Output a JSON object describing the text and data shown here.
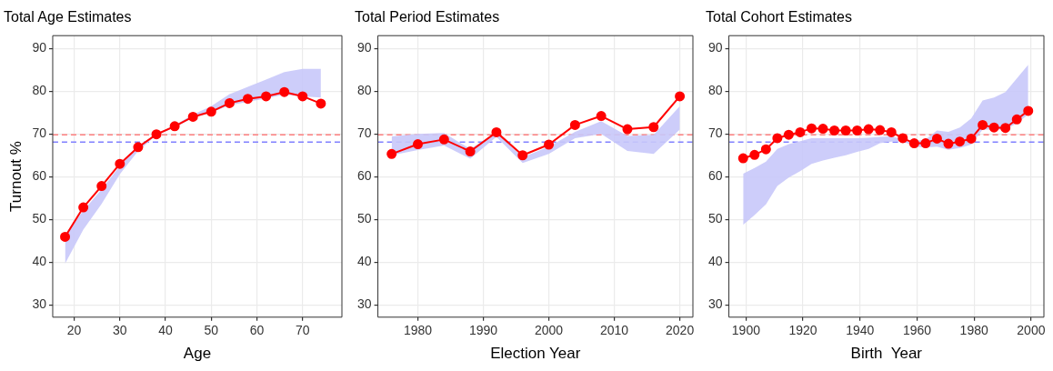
{
  "chart_data": [
    {
      "type": "line",
      "title": "Total Age Estimates",
      "xlabel": "Age",
      "ylabel": "Turnout %",
      "marker": "circle",
      "line_style": "solid",
      "grid": true,
      "x": [
        18,
        22,
        26,
        30,
        34,
        38,
        42,
        46,
        50,
        54,
        58,
        62,
        66,
        70,
        74
      ],
      "xlim": [
        15.3,
        78.6
      ],
      "xticks": [
        20,
        30,
        40,
        50,
        60,
        70
      ],
      "ylim": [
        27.1,
        93
      ],
      "yticks": [
        30,
        40,
        50,
        60,
        70,
        80,
        90
      ],
      "series": [
        {
          "color": "#ff0000",
          "values": [
            45.9,
            52.8,
            57.8,
            63.0,
            66.9,
            69.9,
            71.8,
            74.0,
            75.2,
            77.2,
            78.2,
            78.8,
            79.8,
            78.8,
            77.1
          ]
        },
        {
          "type": "area",
          "color": "#c8c8fa",
          "values": [
            null,
            null,
            null,
            null,
            null,
            null,
            null,
            null,
            null,
            null,
            null,
            null,
            null,
            null,
            null
          ],
          "lower": [
            39.6,
            47.6,
            53.6,
            60.6,
            66,
            69.7,
            71.5,
            73.8,
            75,
            76.7,
            77.5,
            78.3,
            79.2,
            78.8,
            78.5
          ],
          "upper": [
            46.5,
            52,
            57,
            62.5,
            67,
            70,
            72,
            74.5,
            76.5,
            79.3,
            81,
            82.7,
            84.5,
            85.2,
            85.2
          ]
        }
      ],
      "ref_lines": [
        {
          "axis": "y",
          "value": 69.8,
          "color": "#ff8080",
          "line_style": "dashed"
        },
        {
          "axis": "y",
          "value": 68.1,
          "color": "#8080ff",
          "line_style": "dashed"
        }
      ]
    },
    {
      "type": "line",
      "title": "Total Period Estimates",
      "xlabel": "Election Year",
      "marker": "circle",
      "line_style": "solid",
      "grid": true,
      "x": [
        1976,
        1980,
        1984,
        1988,
        1992,
        1996,
        2000,
        2004,
        2008,
        2012,
        2016,
        2020
      ],
      "xlim": [
        1973.9,
        2022
      ],
      "xticks": [
        1980,
        1990,
        2000,
        2010,
        2020
      ],
      "ylim": [
        27.1,
        93
      ],
      "yticks": [
        30,
        40,
        50,
        60,
        70,
        80,
        90
      ],
      "series": [
        {
          "color": "#ff0000",
          "values": [
            65.3,
            67.6,
            68.7,
            65.9,
            70.4,
            65.0,
            67.5,
            72.1,
            74.2,
            71.1,
            71.6,
            78.8
          ]
        },
        {
          "type": "area",
          "color": "#c8c8fa",
          "values": [
            null,
            null,
            null,
            null,
            null,
            null,
            null,
            null,
            null,
            null,
            null,
            null
          ],
          "lower": [
            65,
            66.2,
            67.3,
            64.2,
            69.3,
            63.2,
            65.3,
            69,
            70,
            66,
            65.3,
            71
          ],
          "upper": [
            69.4,
            70,
            70.2,
            66.5,
            70.3,
            64.5,
            67,
            70.5,
            73,
            69.5,
            69.8,
            76.5
          ]
        }
      ],
      "ref_lines": [
        {
          "axis": "y",
          "value": 69.8,
          "color": "#ff8080",
          "line_style": "dashed"
        },
        {
          "axis": "y",
          "value": 68.1,
          "color": "#8080ff",
          "line_style": "dashed"
        }
      ]
    },
    {
      "type": "line",
      "title": "Total Cohort Estimates",
      "xlabel": "Birth  Year",
      "marker": "circle",
      "line_style": "solid",
      "grid": true,
      "x": [
        1899,
        1903,
        1907,
        1911,
        1915,
        1919,
        1923,
        1927,
        1931,
        1935,
        1939,
        1943,
        1947,
        1951,
        1955,
        1959,
        1963,
        1967,
        1971,
        1975,
        1979,
        1983,
        1987,
        1991,
        1995,
        1999
      ],
      "xlim": [
        1894,
        2004.5
      ],
      "xticks": [
        1900,
        1920,
        1940,
        1960,
        1980,
        2000
      ],
      "ylim": [
        27.1,
        93
      ],
      "yticks": [
        30,
        40,
        50,
        60,
        70,
        80,
        90
      ],
      "series": [
        {
          "color": "#ff0000",
          "values": [
            64.3,
            65.1,
            66.4,
            69.0,
            69.8,
            70.4,
            71.3,
            71.2,
            70.8,
            70.8,
            70.8,
            71.1,
            70.9,
            70.4,
            69.0,
            67.8,
            67.8,
            68.9,
            67.7,
            68.2,
            68.9,
            72.1,
            71.5,
            71.4,
            73.4,
            75.4
          ]
        },
        {
          "type": "area",
          "color": "#c8c8fa",
          "values": [
            null,
            null,
            null,
            null,
            null,
            null,
            null,
            null,
            null,
            null,
            null,
            null,
            null,
            null,
            null,
            null,
            null,
            null,
            null,
            null,
            null,
            null,
            null,
            null,
            null,
            null
          ],
          "lower": [
            48.7,
            51,
            53.5,
            57.8,
            59.8,
            61.3,
            63,
            63.8,
            64.4,
            65,
            65.8,
            66.5,
            67.8,
            68.2,
            68.3,
            67,
            66.8,
            67,
            66.3,
            66.7,
            67.5,
            71,
            71,
            71,
            72.5,
            74.5
          ],
          "upper": [
            60.7,
            62,
            63.5,
            66.5,
            67.6,
            68.3,
            69,
            69,
            69,
            69,
            69,
            69.1,
            69.3,
            69.4,
            68.8,
            68.3,
            68.7,
            70.8,
            70.5,
            71.5,
            73.6,
            77.8,
            78.5,
            79.8,
            83,
            86.2
          ]
        }
      ],
      "ref_lines": [
        {
          "axis": "y",
          "value": 69.8,
          "color": "#ff8080",
          "line_style": "dashed"
        },
        {
          "axis": "y",
          "value": 68.1,
          "color": "#8080ff",
          "line_style": "dashed"
        }
      ]
    }
  ]
}
